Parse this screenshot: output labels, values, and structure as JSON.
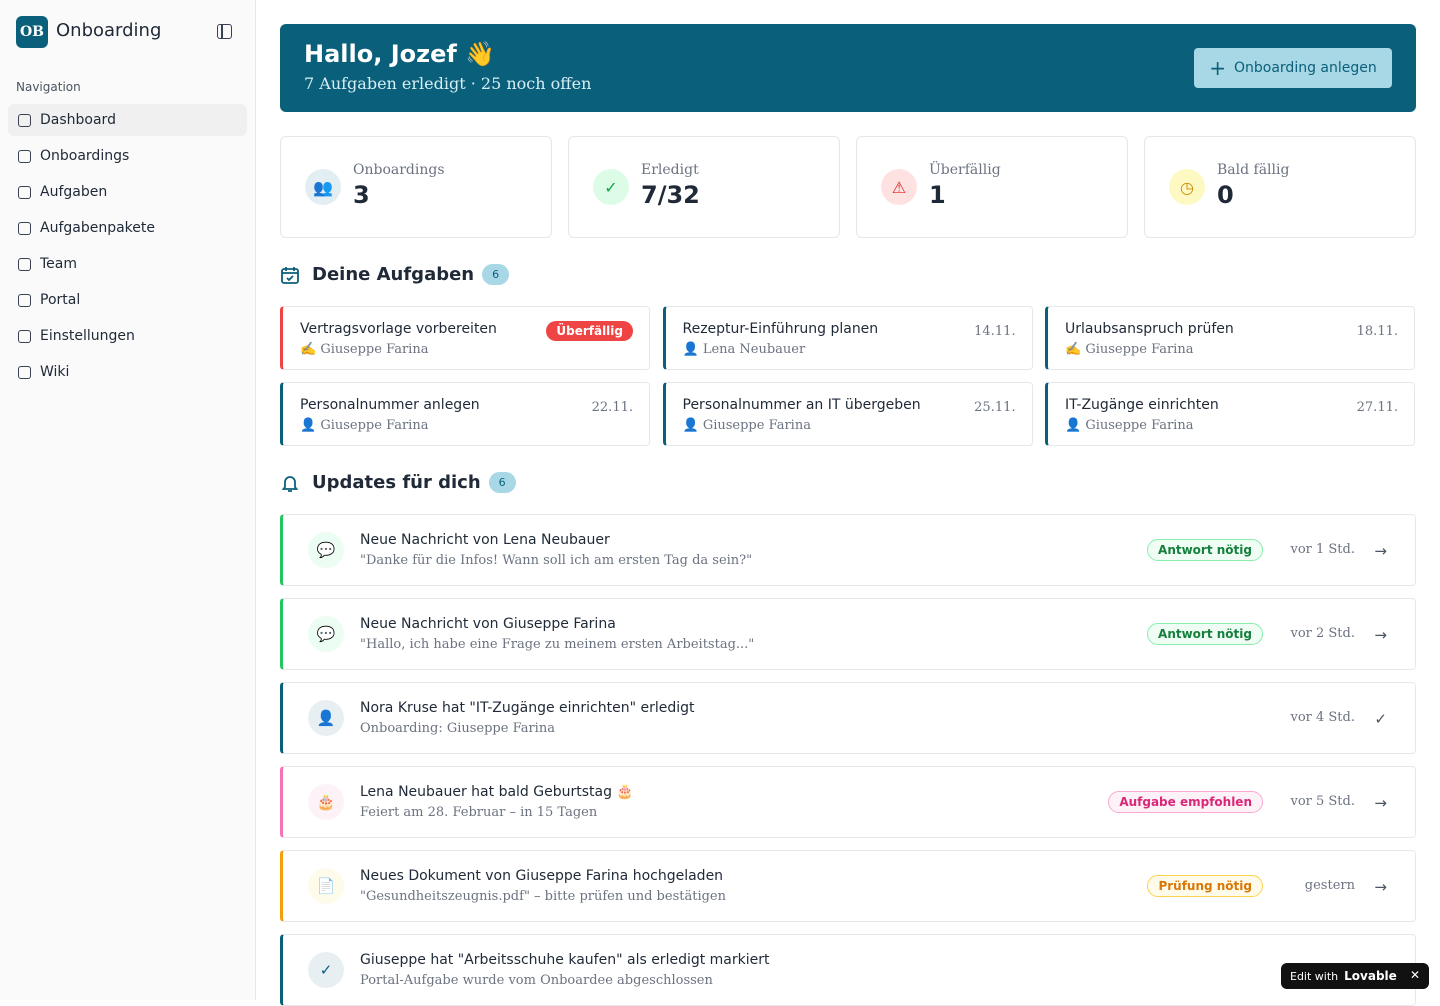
{
  "sidebar": {
    "logo": "OB",
    "app_name": "Onboarding",
    "nav_heading": "Navigation",
    "nav": [
      "Dashboard",
      "Onboardings",
      "Aufgaben",
      "Aufgabenpakete",
      "Team",
      "Portal",
      "Einstellungen",
      "Wiki"
    ]
  },
  "header": {
    "title": "Hallo, Jozef 👋",
    "subtitle": "7 Aufgaben erledigt · 25 noch offen",
    "button": "Onboarding anlegen"
  },
  "stats": [
    {
      "label": "Onboardings",
      "value": "3"
    },
    {
      "label": "Erledigt",
      "value": "7/32"
    },
    {
      "label": "Überfällig",
      "value": "1"
    },
    {
      "label": "Bald fällig",
      "value": "0"
    }
  ],
  "tasks": {
    "heading": "Deine Aufgaben",
    "count": "6",
    "items": [
      {
        "title": "Vertragsvorlage vorbereiten",
        "person": "✍ Giuseppe Farina",
        "badge": "Überfällig"
      },
      {
        "title": "Rezeptur-Einführung planen",
        "person": "👤 Lena Neubauer",
        "date": "14.11."
      },
      {
        "title": "Urlaubsanspruch prüfen",
        "person": "✍ Giuseppe Farina",
        "date": "18.11."
      },
      {
        "title": "Personalnummer anlegen",
        "person": "👤 Giuseppe Farina",
        "date": "22.11."
      },
      {
        "title": "Personalnummer an IT übergeben",
        "person": "👤 Giuseppe Farina",
        "date": "25.11."
      },
      {
        "title": "IT-Zugänge einrichten",
        "person": "👤 Giuseppe Farina",
        "date": "27.11."
      }
    ]
  },
  "updates": {
    "heading": "Updates für dich",
    "count": "6",
    "items": [
      {
        "title": "Neue Nachricht von Lena Neubauer",
        "text": "\"Danke für die Infos! Wann soll ich am ersten Tag da sein?\"",
        "badge": "Antwort nötig",
        "time": "vor 1 Std."
      },
      {
        "title": "Neue Nachricht von Giuseppe Farina",
        "text": "\"Hallo, ich habe eine Frage zu meinem ersten Arbeitstag...\"",
        "badge": "Antwort nötig",
        "time": "vor 2 Std."
      },
      {
        "title": "Nora Kruse hat \"IT-Zugänge einrichten\" erledigt",
        "text": "Onboarding: Giuseppe Farina",
        "time": "vor 4 Std."
      },
      {
        "title": "Lena Neubauer hat bald Geburtstag 🎂",
        "text": "Feiert am 28. Februar – in 15 Tagen",
        "badge": "Aufgabe empfohlen",
        "time": "vor 5 Std."
      },
      {
        "title": "Neues Dokument von Giuseppe Farina hochgeladen",
        "text": "\"Gesundheitszeugnis.pdf\" – bitte prüfen und bestätigen",
        "badge": "Prüfung nötig",
        "time": "gestern"
      },
      {
        "title": "Giuseppe hat \"Arbeitsschuhe kaufen\" als erledigt markiert",
        "text": "Portal-Aufgabe wurde vom Onboardee abgeschlossen"
      }
    ]
  },
  "footer_badge": {
    "prefix": "Edit with",
    "brand": "Lovable"
  }
}
